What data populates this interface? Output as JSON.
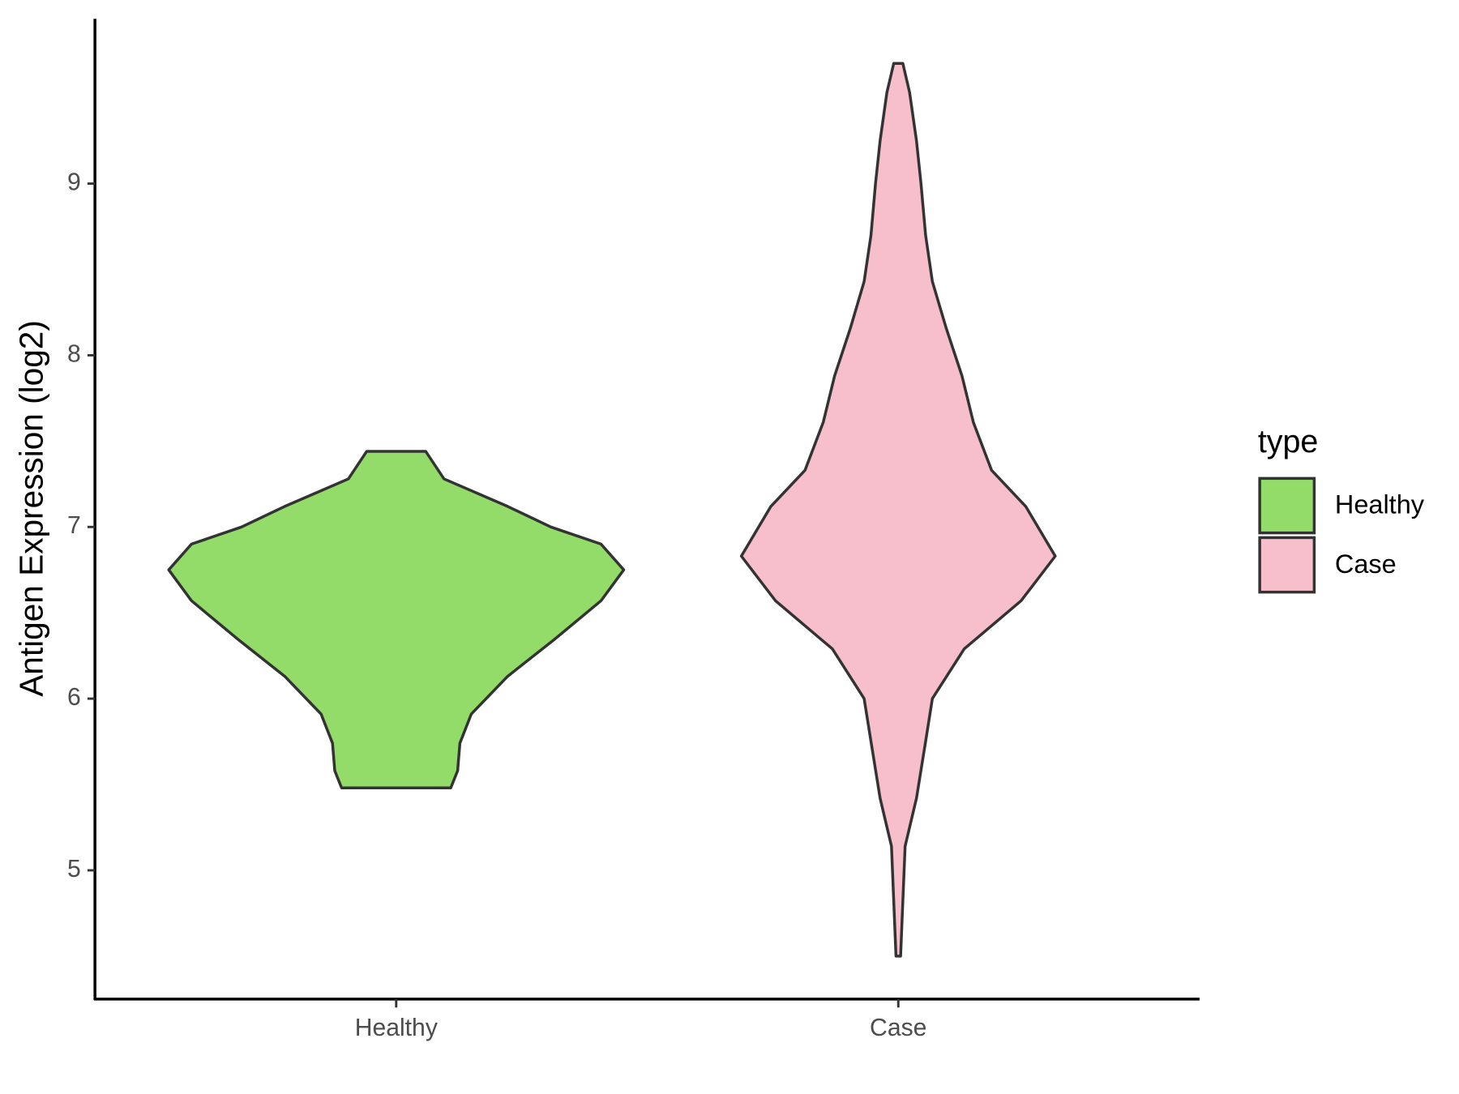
{
  "chart_data": {
    "type": "violin",
    "y_label": "Antigen Expression (log2)",
    "categories": [
      "Healthy",
      "Case"
    ],
    "series": [
      {
        "name": "Healthy",
        "color": "#93dc69",
        "y": [
          7.44,
          7.28,
          7.12,
          7.0,
          6.9,
          6.75,
          6.57,
          6.35,
          6.13,
          5.91,
          5.74,
          5.58,
          5.48
        ],
        "width": [
          0.13,
          0.21,
          0.49,
          0.68,
          0.9,
          1.0,
          0.9,
          0.7,
          0.49,
          0.33,
          0.28,
          0.27,
          0.24
        ]
      },
      {
        "name": "Case",
        "color": "#f7bfcb",
        "y": [
          9.7,
          9.53,
          9.25,
          9.0,
          8.7,
          8.43,
          8.16,
          7.88,
          7.61,
          7.33,
          7.12,
          6.83,
          6.57,
          6.29,
          6.0,
          5.75,
          5.42,
          5.14,
          4.5
        ],
        "width": [
          0.02,
          0.05,
          0.08,
          0.1,
          0.12,
          0.15,
          0.21,
          0.28,
          0.33,
          0.41,
          0.56,
          0.69,
          0.54,
          0.29,
          0.15,
          0.12,
          0.08,
          0.03,
          0.01
        ]
      }
    ],
    "ylim": [
      4.25,
      9.96
    ],
    "yticks": [
      5,
      6,
      7,
      8,
      9
    ],
    "legend_title": "type",
    "legend": "right"
  }
}
